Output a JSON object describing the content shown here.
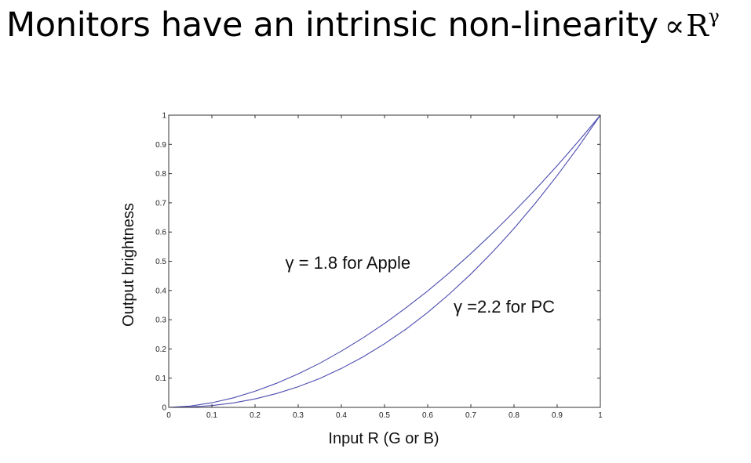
{
  "title": {
    "text": "Monitors have an intrinsic non-linearity",
    "symbol": "∝",
    "base": "R",
    "superscript": "γ"
  },
  "chart_data": {
    "type": "line",
    "xlabel": "Input R (G or B)",
    "ylabel": "Output brightness",
    "xlim": [
      0,
      1
    ],
    "ylim": [
      0,
      1
    ],
    "x_ticks": [
      "0",
      "0.1",
      "0.2",
      "0.3",
      "0.4",
      "0.5",
      "0.6",
      "0.7",
      "0.8",
      "0.9",
      "1"
    ],
    "y_ticks": [
      "0",
      "0.1",
      "0.2",
      "0.3",
      "0.4",
      "0.5",
      "0.6",
      "0.7",
      "0.8",
      "0.9",
      "1"
    ],
    "grid": false,
    "series_color": "#4b4bb0",
    "series": [
      {
        "x": [
          0,
          0.05,
          0.1,
          0.15,
          0.2,
          0.25,
          0.3,
          0.35,
          0.4,
          0.45,
          0.5,
          0.55,
          0.6,
          0.65,
          0.7,
          0.75,
          0.8,
          0.85,
          0.9,
          0.95,
          1
        ],
        "values": [
          0,
          0.0046,
          0.0158,
          0.0327,
          0.0552,
          0.0825,
          0.1147,
          0.1509,
          0.1925,
          0.2379,
          0.2872,
          0.3409,
          0.3983,
          0.4603,
          0.5262,
          0.5959,
          0.6694,
          0.7464,
          0.8272,
          0.9118,
          1
        ]
      },
      {
        "x": [
          0,
          0.05,
          0.1,
          0.15,
          0.2,
          0.25,
          0.3,
          0.35,
          0.4,
          0.45,
          0.5,
          0.55,
          0.6,
          0.65,
          0.7,
          0.75,
          0.8,
          0.85,
          0.9,
          0.95,
          1
        ],
        "values": [
          0,
          0.0014,
          0.0063,
          0.0154,
          0.029,
          0.0474,
          0.0707,
          0.099,
          0.1332,
          0.1727,
          0.2176,
          0.2681,
          0.325,
          0.3878,
          0.4562,
          0.5311,
          0.6122,
          0.6996,
          0.7932,
          0.8932,
          1
        ]
      }
    ],
    "annotations": [
      {
        "text": "γ = 1.8 for Apple",
        "x": 0.27,
        "y": 0.475
      },
      {
        "text": "γ =2.2 for PC",
        "x": 0.66,
        "y": 0.325
      }
    ]
  }
}
